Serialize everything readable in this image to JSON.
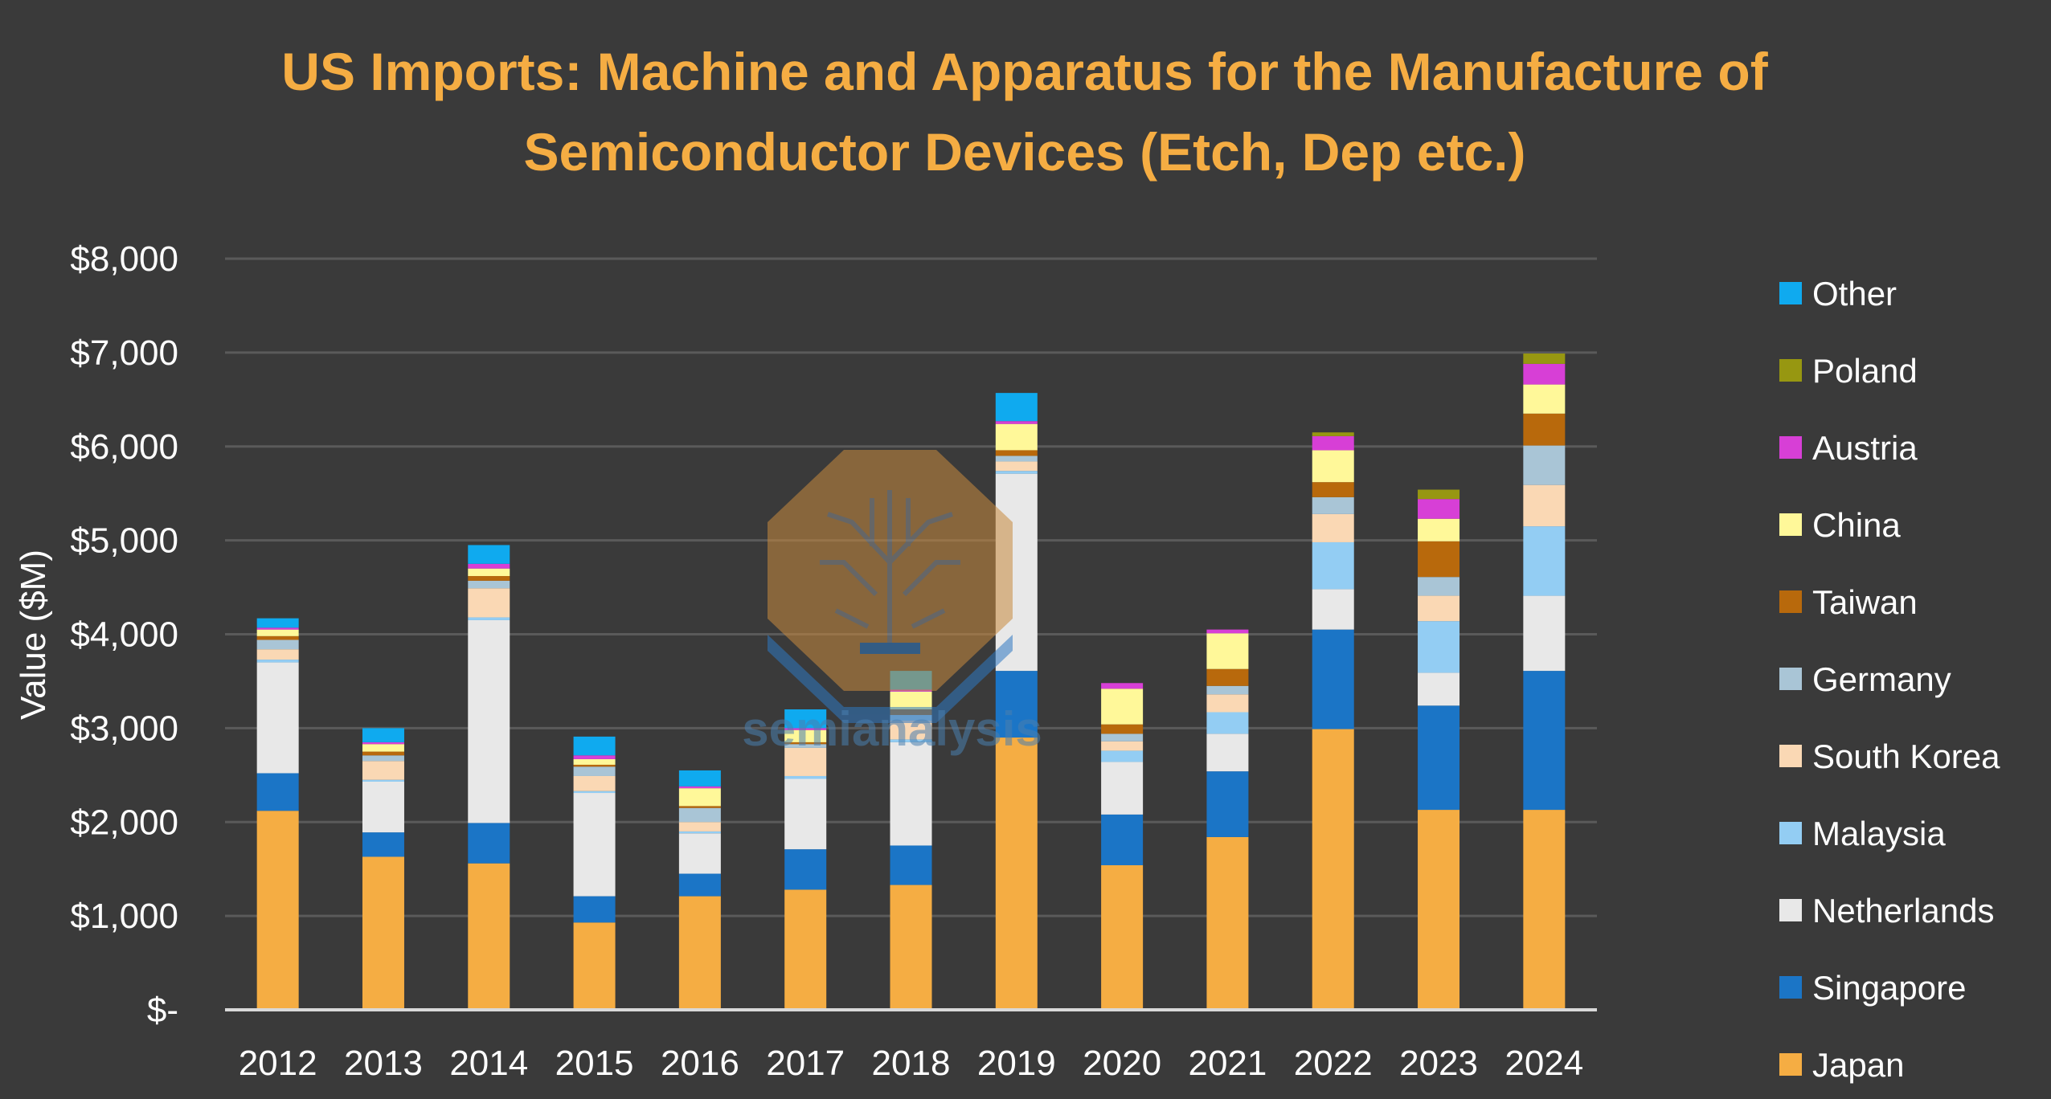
{
  "chart_data": {
    "type": "bar",
    "stacked": true,
    "title": "US Imports: Machine and Apparatus for the Manufacture of Semiconductor Devices (Etch, Dep etc.)",
    "title_lines": [
      "US Imports: Machine and Apparatus for the Manufacture of",
      "Semiconductor Devices (Etch, Dep etc.)"
    ],
    "xlabel": "",
    "ylabel": "Value ($M)",
    "ylim": [
      0,
      8000
    ],
    "yticks": [
      0,
      1000,
      2000,
      3000,
      4000,
      5000,
      6000,
      7000,
      8000
    ],
    "ytick_labels": [
      "$-",
      "$1,000",
      "$2,000",
      "$3,000",
      "$4,000",
      "$5,000",
      "$6,000",
      "$7,000",
      "$8,000"
    ],
    "grid": true,
    "legend_position": "right",
    "categories": [
      "2012",
      "2013",
      "2014",
      "2015",
      "2016",
      "2017",
      "2018",
      "2019",
      "2020",
      "2021",
      "2022",
      "2023",
      "2024"
    ],
    "series": [
      {
        "name": "Japan",
        "color": "#f5ad43",
        "values": [
          2120,
          1630,
          1560,
          930,
          1210,
          1280,
          1330,
          2900,
          1540,
          1840,
          2990,
          2130,
          2130
        ]
      },
      {
        "name": "Singapore",
        "color": "#1b75c6",
        "values": [
          400,
          260,
          430,
          280,
          240,
          430,
          420,
          710,
          540,
          700,
          1060,
          1110,
          1480
        ]
      },
      {
        "name": "Netherlands",
        "color": "#e8e8e8",
        "values": [
          1180,
          540,
          2160,
          1100,
          430,
          750,
          1100,
          2100,
          560,
          400,
          430,
          350,
          800
        ]
      },
      {
        "name": "Malaysia",
        "color": "#93cdf3",
        "values": [
          30,
          20,
          30,
          20,
          20,
          30,
          30,
          30,
          120,
          230,
          500,
          550,
          740
        ]
      },
      {
        "name": "South Korea",
        "color": "#fad8b4",
        "values": [
          110,
          200,
          310,
          160,
          100,
          300,
          200,
          100,
          100,
          190,
          300,
          270,
          440
        ]
      },
      {
        "name": "Germany",
        "color": "#a9c5d6",
        "values": [
          100,
          60,
          80,
          100,
          150,
          40,
          60,
          60,
          80,
          90,
          180,
          200,
          420
        ]
      },
      {
        "name": "Taiwan",
        "color": "#b8690c",
        "values": [
          40,
          40,
          50,
          20,
          20,
          20,
          60,
          60,
          100,
          180,
          160,
          380,
          340
        ]
      },
      {
        "name": "China",
        "color": "#fff899",
        "values": [
          70,
          80,
          80,
          60,
          190,
          130,
          190,
          280,
          380,
          380,
          340,
          240,
          310
        ]
      },
      {
        "name": "Austria",
        "color": "#d73fd6",
        "values": [
          20,
          20,
          50,
          40,
          20,
          20,
          20,
          30,
          60,
          40,
          150,
          210,
          220
        ]
      },
      {
        "name": "Poland",
        "color": "#979711",
        "values": [
          0,
          0,
          0,
          0,
          0,
          0,
          0,
          0,
          0,
          0,
          40,
          100,
          110
        ]
      },
      {
        "name": "Other",
        "color": "#0faaef",
        "values": [
          100,
          150,
          200,
          200,
          170,
          200,
          200,
          300,
          0,
          0,
          0,
          0,
          0
        ]
      }
    ],
    "legend_order": [
      "Other",
      "Poland",
      "Austria",
      "China",
      "Taiwan",
      "Germany",
      "South Korea",
      "Malaysia",
      "Netherlands",
      "Singapore",
      "Japan"
    ],
    "watermark": "semianalysis"
  }
}
